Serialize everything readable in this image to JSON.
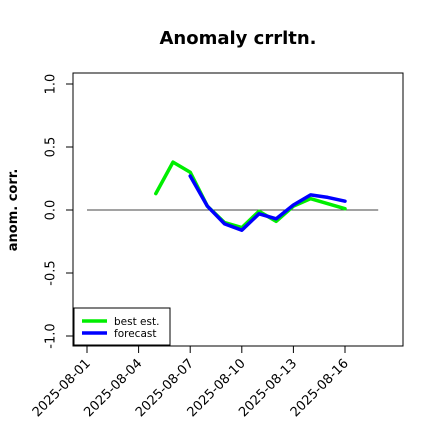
{
  "chart_data": {
    "type": "line",
    "title": "Anomaly crrltn.",
    "xlabel": "",
    "ylabel": "anom. corr.",
    "ylim": [
      -1.0,
      1.0
    ],
    "yticks": [
      -1.0,
      -0.5,
      0.0,
      0.5,
      1.0
    ],
    "ytick_labels": [
      "-1.0",
      "-0.5",
      "0.0",
      "0.5",
      "1.0"
    ],
    "x_dates": [
      "2025-08-01",
      "2025-08-02",
      "2025-08-03",
      "2025-08-04",
      "2025-08-05",
      "2025-08-06",
      "2025-08-07",
      "2025-08-08",
      "2025-08-09",
      "2025-08-10",
      "2025-08-11",
      "2025-08-12",
      "2025-08-13",
      "2025-08-14",
      "2025-08-15",
      "2025-08-16",
      "2025-08-17"
    ],
    "xticks": [
      "2025-08-01",
      "2025-08-04",
      "2025-08-07",
      "2025-08-10",
      "2025-08-13",
      "2025-08-16"
    ],
    "xtick_colors": [
      "#000000",
      "#000000",
      "#2ca02c",
      "#000000",
      "#000000",
      "#000000"
    ],
    "reference_line": 0.0,
    "grid": false,
    "legend_position": "bottom-left",
    "series": [
      {
        "name": "best est.",
        "color": "#00ee00",
        "x": [
          "2025-08-05",
          "2025-08-06",
          "2025-08-07",
          "2025-08-08",
          "2025-08-09",
          "2025-08-10",
          "2025-08-11",
          "2025-08-12",
          "2025-08-13",
          "2025-08-14",
          "2025-08-15",
          "2025-08-16"
        ],
        "values": [
          0.13,
          0.38,
          0.3,
          0.03,
          -0.1,
          -0.14,
          -0.01,
          -0.09,
          0.03,
          0.09,
          0.05,
          0.01
        ]
      },
      {
        "name": "forecast",
        "color": "#0000ff",
        "x": [
          "2025-08-07",
          "2025-08-08",
          "2025-08-09",
          "2025-08-10",
          "2025-08-11",
          "2025-08-12",
          "2025-08-13",
          "2025-08-14",
          "2025-08-15",
          "2025-08-16"
        ],
        "values": [
          0.27,
          0.03,
          -0.11,
          -0.16,
          -0.03,
          -0.07,
          0.04,
          0.12,
          0.1,
          0.07
        ]
      }
    ]
  }
}
